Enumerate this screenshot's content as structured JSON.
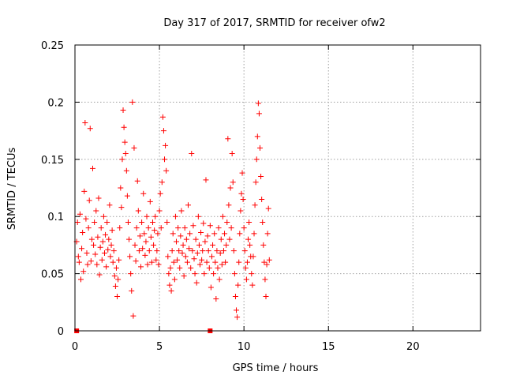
{
  "chart_data": {
    "type": "scatter",
    "title": "Day 317 of 2017, SRMTID for receiver ofw2",
    "xlabel": "GPS time / hours",
    "ylabel": "SRMTID / TECUs",
    "xlim": [
      0,
      24
    ],
    "ylim": [
      0,
      0.25
    ],
    "xticks": [
      0,
      5,
      10,
      15,
      20
    ],
    "xtick_labels": [
      "0",
      "5",
      "10",
      "15",
      "20"
    ],
    "yticks": [
      0,
      0.05,
      0.1,
      0.15,
      0.2,
      0.25
    ],
    "ytick_labels": [
      "0",
      "0.05",
      "0.1",
      "0.15",
      "0.2",
      "0.25"
    ],
    "grid": true,
    "color": "#ff0000",
    "marker": "plus",
    "series": [
      {
        "name": "SRMTID",
        "points": [
          [
            0.1,
            0.078
          ],
          [
            0.15,
            0.095
          ],
          [
            0.2,
            0.065
          ],
          [
            0.25,
            0.06
          ],
          [
            0.3,
            0.102
          ],
          [
            0.35,
            0.045
          ],
          [
            0.4,
            0.072
          ],
          [
            0.45,
            0.086
          ],
          [
            0.5,
            0.052
          ],
          [
            0.55,
            0.122
          ],
          [
            0.6,
            0.182
          ],
          [
            0.65,
            0.098
          ],
          [
            0.7,
            0.068
          ],
          [
            0.75,
            0.058
          ],
          [
            0.8,
            0.09
          ],
          [
            0.85,
            0.114
          ],
          [
            0.9,
            0.177
          ],
          [
            0.95,
            0.061
          ],
          [
            1.0,
            0.08
          ],
          [
            1.05,
            0.142
          ],
          [
            1.1,
            0.075
          ],
          [
            1.15,
            0.095
          ],
          [
            1.2,
            0.067
          ],
          [
            1.25,
            0.105
          ],
          [
            1.3,
            0.058
          ],
          [
            1.35,
            0.082
          ],
          [
            1.4,
            0.116
          ],
          [
            1.45,
            0.049
          ],
          [
            1.5,
            0.073
          ],
          [
            1.55,
            0.09
          ],
          [
            1.6,
            0.062
          ],
          [
            1.65,
            0.078
          ],
          [
            1.7,
            0.1
          ],
          [
            1.75,
            0.068
          ],
          [
            1.8,
            0.084
          ],
          [
            1.85,
            0.056
          ],
          [
            1.9,
            0.095
          ],
          [
            1.95,
            0.071
          ],
          [
            2.0,
            0.08
          ],
          [
            2.05,
            0.11
          ],
          [
            2.1,
            0.065
          ],
          [
            2.15,
            0.075
          ],
          [
            2.2,
            0.088
          ],
          [
            2.25,
            0.06
          ],
          [
            2.3,
            0.07
          ],
          [
            2.35,
            0.048
          ],
          [
            2.4,
            0.039
          ],
          [
            2.45,
            0.055
          ],
          [
            2.5,
            0.03
          ],
          [
            2.55,
            0.045
          ],
          [
            2.6,
            0.062
          ],
          [
            2.65,
            0.09
          ],
          [
            2.7,
            0.125
          ],
          [
            2.75,
            0.108
          ],
          [
            2.8,
            0.15
          ],
          [
            2.85,
            0.193
          ],
          [
            2.9,
            0.178
          ],
          [
            2.95,
            0.165
          ],
          [
            3.0,
            0.155
          ],
          [
            3.05,
            0.14
          ],
          [
            3.1,
            0.118
          ],
          [
            3.15,
            0.095
          ],
          [
            3.2,
            0.08
          ],
          [
            3.25,
            0.065
          ],
          [
            3.3,
            0.05
          ],
          [
            3.35,
            0.035
          ],
          [
            3.4,
            0.2
          ],
          [
            3.45,
            0.013
          ],
          [
            3.5,
            0.16
          ],
          [
            3.55,
            0.075
          ],
          [
            3.6,
            0.061
          ],
          [
            3.65,
            0.09
          ],
          [
            3.7,
            0.131
          ],
          [
            3.75,
            0.105
          ],
          [
            3.8,
            0.07
          ],
          [
            3.85,
            0.083
          ],
          [
            3.9,
            0.056
          ],
          [
            3.95,
            0.095
          ],
          [
            4.0,
            0.072
          ],
          [
            4.05,
            0.12
          ],
          [
            4.1,
            0.085
          ],
          [
            4.15,
            0.066
          ],
          [
            4.2,
            0.078
          ],
          [
            4.25,
            0.1
          ],
          [
            4.3,
            0.058
          ],
          [
            4.35,
            0.09
          ],
          [
            4.4,
            0.07
          ],
          [
            4.45,
            0.113
          ],
          [
            4.5,
            0.082
          ],
          [
            4.55,
            0.06
          ],
          [
            4.6,
            0.095
          ],
          [
            4.65,
            0.075
          ],
          [
            4.7,
            0.088
          ],
          [
            4.75,
            0.1
          ],
          [
            4.8,
            0.062
          ],
          [
            4.85,
            0.07
          ],
          [
            4.9,
            0.085
          ],
          [
            4.95,
            0.058
          ],
          [
            5.0,
            0.105
          ],
          [
            5.05,
            0.12
          ],
          [
            5.1,
            0.09
          ],
          [
            5.15,
            0.13
          ],
          [
            5.2,
            0.187
          ],
          [
            5.25,
            0.175
          ],
          [
            5.3,
            0.15
          ],
          [
            5.35,
            0.162
          ],
          [
            5.4,
            0.14
          ],
          [
            5.45,
            0.095
          ],
          [
            5.5,
            0.065
          ],
          [
            5.55,
            0.05
          ],
          [
            5.6,
            0.04
          ],
          [
            5.65,
            0.055
          ],
          [
            5.7,
            0.035
          ],
          [
            5.75,
            0.07
          ],
          [
            5.8,
            0.085
          ],
          [
            5.85,
            0.06
          ],
          [
            5.9,
            0.045
          ],
          [
            5.95,
            0.1
          ],
          [
            6.0,
            0.078
          ],
          [
            6.05,
            0.062
          ],
          [
            6.1,
            0.09
          ],
          [
            6.15,
            0.07
          ],
          [
            6.2,
            0.055
          ],
          [
            6.25,
            0.083
          ],
          [
            6.3,
            0.105
          ],
          [
            6.35,
            0.068
          ],
          [
            6.4,
            0.075
          ],
          [
            6.45,
            0.048
          ],
          [
            6.5,
            0.09
          ],
          [
            6.55,
            0.065
          ],
          [
            6.6,
            0.08
          ],
          [
            6.65,
            0.06
          ],
          [
            6.7,
            0.11
          ],
          [
            6.75,
            0.072
          ],
          [
            6.8,
            0.085
          ],
          [
            6.85,
            0.055
          ],
          [
            6.9,
            0.155
          ],
          [
            6.95,
            0.07
          ],
          [
            7.0,
            0.092
          ],
          [
            7.05,
            0.063
          ],
          [
            7.1,
            0.05
          ],
          [
            7.15,
            0.08
          ],
          [
            7.2,
            0.042
          ],
          [
            7.25,
            0.068
          ],
          [
            7.3,
            0.1
          ],
          [
            7.35,
            0.075
          ],
          [
            7.4,
            0.058
          ],
          [
            7.45,
            0.086
          ],
          [
            7.5,
            0.062
          ],
          [
            7.55,
            0.07
          ],
          [
            7.6,
            0.094
          ],
          [
            7.65,
            0.05
          ],
          [
            7.7,
            0.078
          ],
          [
            7.75,
            0.132
          ],
          [
            7.8,
            0.06
          ],
          [
            7.85,
            0.083
          ],
          [
            7.9,
            0.07
          ],
          [
            7.95,
            0.055
          ],
          [
            8.0,
            0.092
          ],
          [
            8.05,
            0.038
          ],
          [
            8.1,
            0.065
          ],
          [
            8.15,
            0.075
          ],
          [
            8.2,
            0.05
          ],
          [
            8.25,
            0.085
          ],
          [
            8.3,
            0.06
          ],
          [
            8.35,
            0.028
          ],
          [
            8.4,
            0.07
          ],
          [
            8.45,
            0.055
          ],
          [
            8.5,
            0.09
          ],
          [
            8.55,
            0.045
          ],
          [
            8.6,
            0.068
          ],
          [
            8.65,
            0.08
          ],
          [
            8.7,
            0.058
          ],
          [
            8.75,
            0.1
          ],
          [
            8.8,
            0.07
          ],
          [
            8.85,
            0.085
          ],
          [
            8.9,
            0.06
          ],
          [
            8.95,
            0.075
          ],
          [
            9.0,
            0.095
          ],
          [
            9.05,
            0.168
          ],
          [
            9.1,
            0.11
          ],
          [
            9.15,
            0.08
          ],
          [
            9.2,
            0.125
          ],
          [
            9.25,
            0.09
          ],
          [
            9.3,
            0.155
          ],
          [
            9.35,
            0.13
          ],
          [
            9.4,
            0.07
          ],
          [
            9.45,
            0.05
          ],
          [
            9.5,
            0.03
          ],
          [
            9.55,
            0.018
          ],
          [
            9.6,
            0.012
          ],
          [
            9.65,
            0.04
          ],
          [
            9.7,
            0.06
          ],
          [
            9.75,
            0.085
          ],
          [
            9.8,
            0.105
          ],
          [
            9.85,
            0.12
          ],
          [
            9.9,
            0.138
          ],
          [
            9.95,
            0.115
          ],
          [
            10.0,
            0.09
          ],
          [
            10.05,
            0.07
          ],
          [
            10.1,
            0.055
          ],
          [
            10.15,
            0.045
          ],
          [
            10.2,
            0.06
          ],
          [
            10.25,
            0.08
          ],
          [
            10.3,
            0.095
          ],
          [
            10.35,
            0.075
          ],
          [
            10.4,
            0.065
          ],
          [
            10.45,
            0.05
          ],
          [
            10.5,
            0.04
          ],
          [
            10.55,
            0.065
          ],
          [
            10.6,
            0.085
          ],
          [
            10.65,
            0.11
          ],
          [
            10.7,
            0.13
          ],
          [
            10.75,
            0.15
          ],
          [
            10.8,
            0.17
          ],
          [
            10.85,
            0.199
          ],
          [
            10.9,
            0.19
          ],
          [
            10.95,
            0.16
          ],
          [
            11.0,
            0.135
          ],
          [
            11.05,
            0.115
          ],
          [
            11.1,
            0.095
          ],
          [
            11.15,
            0.075
          ],
          [
            11.2,
            0.06
          ],
          [
            11.25,
            0.045
          ],
          [
            11.3,
            0.03
          ],
          [
            11.35,
            0.058
          ],
          [
            11.4,
            0.085
          ],
          [
            11.45,
            0.107
          ],
          [
            11.5,
            0.062
          ]
        ]
      }
    ],
    "baseline_markers": [
      {
        "x": 0.1,
        "y": 0
      },
      {
        "x": 8.0,
        "y": 0
      }
    ]
  }
}
